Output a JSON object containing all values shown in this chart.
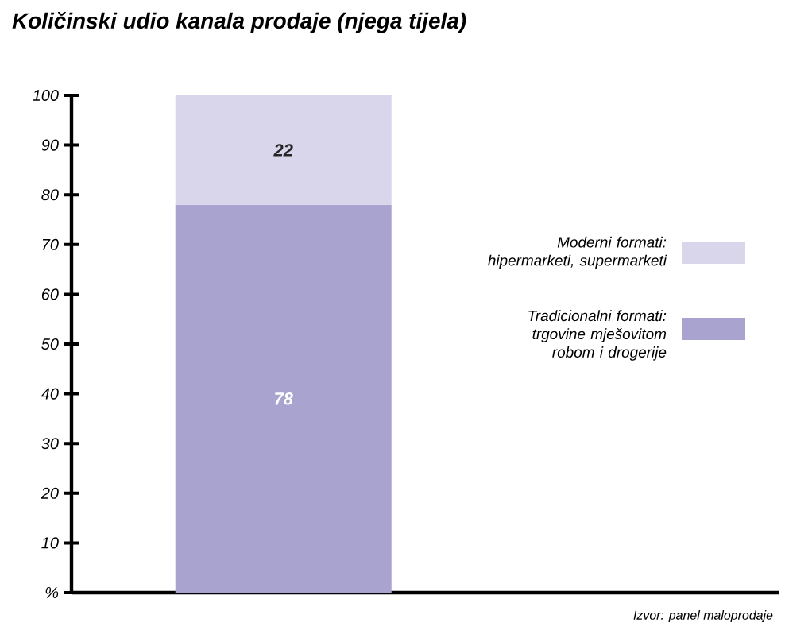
{
  "chart_data": {
    "type": "bar",
    "title": "Količinski udio kanala prodaje (njega tijela)",
    "categories": [
      null
    ],
    "stacked": true,
    "data_labels": true,
    "legend": "right",
    "grid": false,
    "series": [
      {
        "name": "Tradicionalni formati: trgovine mješovitom robom i drogerije",
        "color": "#a9a3cf",
        "values": [
          78
        ]
      },
      {
        "name": "Moderni formati: hipermarketi, supermarketi",
        "color": "#d9d5ea",
        "values": [
          22
        ]
      }
    ],
    "ylim": [
      0,
      100
    ],
    "yticks": [
      {
        "value": 0,
        "label": "%"
      },
      10,
      20,
      30,
      40,
      50,
      60,
      70,
      80,
      90,
      100
    ],
    "annotations": [
      "Izvor:  panel maloprodaje"
    ]
  }
}
